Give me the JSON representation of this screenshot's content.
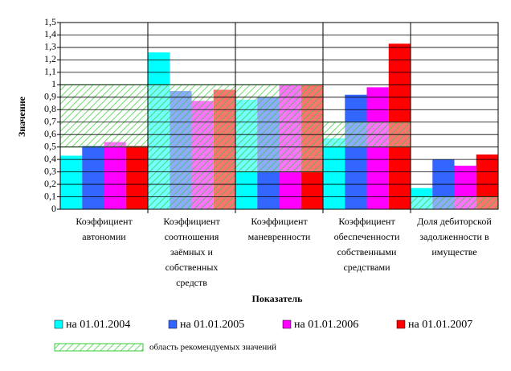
{
  "chart_data": {
    "type": "bar",
    "y_label": "Значение",
    "x_label": "Показатель",
    "categories": [
      "Коэффициент автономии",
      "Коэффициент соотношения заёмных и собственных средств",
      "Коэффициент маневренности",
      "Коэффициент обеспеченности собственными средствами",
      "Доля дебиторской задолженности в имуществе"
    ],
    "series": [
      {
        "name": "на 01.01.2004",
        "color": "#00ffff",
        "values": [
          0.43,
          1.26,
          0.88,
          0.57,
          0.17
        ]
      },
      {
        "name": "на 01.01.2005",
        "color": "#3366ff",
        "values": [
          0.51,
          0.95,
          0.9,
          0.92,
          0.4
        ]
      },
      {
        "name": "на 01.01.2006",
        "color": "#ff00ff",
        "values": [
          0.54,
          0.87,
          1.0,
          0.98,
          0.35
        ]
      },
      {
        "name": "на 01.01.2007",
        "color": "#ff0000",
        "values": [
          0.51,
          0.96,
          1.0,
          1.33,
          0.44
        ]
      }
    ],
    "region": {
      "name": "область рекомендуемых значений",
      "color": "#33cc33",
      "ranges": [
        [
          0.5,
          1
        ],
        [
          0,
          1
        ],
        [
          0.3,
          1
        ],
        [
          0.5,
          0.7
        ],
        [
          0,
          0.1
        ]
      ]
    },
    "ylim": [
      0,
      1.5
    ],
    "yticks": [
      0,
      {
        "value": 0.1,
        "label": "0,1"
      },
      {
        "value": 0.2,
        "label": "0,2"
      },
      {
        "value": 0.3,
        "label": "0,3"
      },
      {
        "value": 0.4,
        "label": "0,4"
      },
      {
        "value": 0.5,
        "label": "0,5"
      },
      {
        "value": 0.6,
        "label": "0,6"
      },
      {
        "value": 0.7,
        "label": "0,7"
      },
      {
        "value": 0.8,
        "label": "0,8"
      },
      {
        "value": 0.9,
        "label": "0,9"
      },
      1,
      {
        "value": 1.1,
        "label": "1,1"
      },
      {
        "value": 1.2,
        "label": "1,2"
      },
      {
        "value": 1.3,
        "label": "1,3"
      },
      {
        "value": 1.4,
        "label": "1,4"
      },
      {
        "value": 1.5,
        "label": "1,5"
      }
    ],
    "grid": true
  }
}
